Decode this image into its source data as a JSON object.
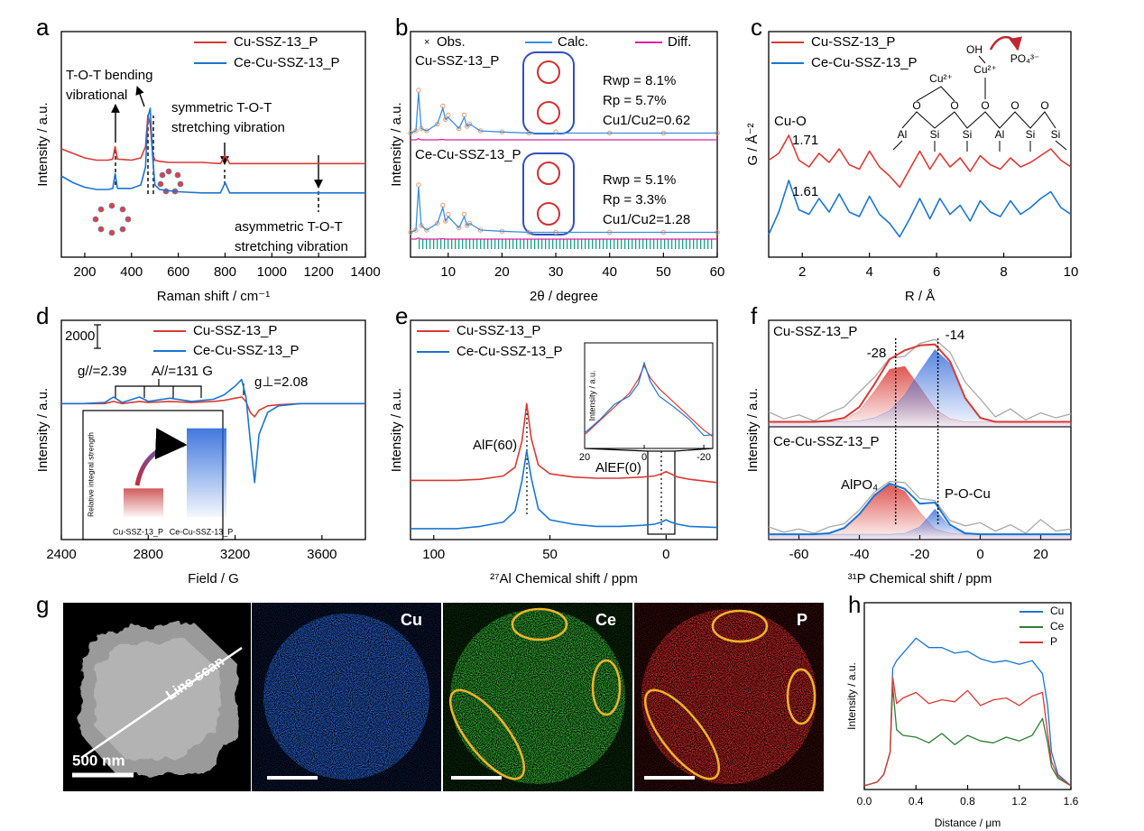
{
  "panel_labels": [
    "a",
    "b",
    "c",
    "d",
    "e",
    "f",
    "g",
    "h"
  ],
  "micrographs": {
    "maps": [
      "Cu",
      "Ce",
      "P"
    ],
    "scale_bar": "500 nm",
    "line_scan": "Line scan"
  },
  "chart_data": [
    {
      "type": "line",
      "xlabel": "Raman shift / cm⁻¹",
      "ylabel": "Intensity / a.u.",
      "xlim": [
        100,
        1400
      ],
      "xticks": [
        200,
        400,
        600,
        800,
        1000,
        1200,
        1400
      ],
      "ylim": [
        0,
        10
      ],
      "x": [
        100,
        150,
        200,
        250,
        300,
        320,
        330,
        340,
        400,
        440,
        460,
        470,
        480,
        490,
        500,
        520,
        560,
        600,
        700,
        780,
        800,
        820,
        900,
        1000,
        1100,
        1200,
        1300,
        1400
      ],
      "series": [
        {
          "name": "Cu-SSZ-13_P",
          "color": "#d93a35",
          "values": [
            4.8,
            4.6,
            4.4,
            4.3,
            4.3,
            4.35,
            4.9,
            4.35,
            4.3,
            4.4,
            4.9,
            6.3,
            5.9,
            4.6,
            4.3,
            4.25,
            4.2,
            4.2,
            4.2,
            4.15,
            4.5,
            4.15,
            4.15,
            4.15,
            4.15,
            4.15,
            4.15,
            4.15
          ]
        },
        {
          "name": "Ce-Cu-SSZ-13_P",
          "color": "#1a75d2",
          "values": [
            3.6,
            3.3,
            3.1,
            3.0,
            3.0,
            3.05,
            3.7,
            3.05,
            3.05,
            3.2,
            4.0,
            6.2,
            6.6,
            4.5,
            3.2,
            3.0,
            2.95,
            2.9,
            2.85,
            2.85,
            3.3,
            2.85,
            2.85,
            2.85,
            2.85,
            2.85,
            2.85,
            2.85
          ]
        }
      ],
      "annotations": [
        "T-O-T bending",
        "vibrational",
        "symmetric T-O-T",
        "stretching vibration",
        "asymmetric T-O-T",
        "stretching vibration"
      ]
    },
    {
      "type": "refinement",
      "xlabel": "2θ / degree",
      "ylabel": "Intensity / a.u.",
      "xlim": [
        3,
        60
      ],
      "xticks": [
        10,
        20,
        30,
        40,
        50,
        60
      ],
      "ylim": [
        0,
        10
      ],
      "legend": [
        {
          "name": "Obs.",
          "color": "#e8976a"
        },
        {
          "name": "Calc.",
          "color": "#3a8ee0"
        },
        {
          "name": "Diff.",
          "color": "#e020a0"
        }
      ],
      "x": [
        3,
        4,
        4.5,
        5,
        6,
        8,
        9,
        9.5,
        10,
        12,
        13,
        13.5,
        14,
        16,
        20,
        25,
        30,
        40,
        50,
        60
      ],
      "profiles": [
        {
          "label": "Cu-SSZ-13_P",
          "obs": [
            5.5,
            5.6,
            7.4,
            5.7,
            5.6,
            5.9,
            6.7,
            6.1,
            6.3,
            5.7,
            6.3,
            5.8,
            5.9,
            5.6,
            5.55,
            5.5,
            5.55,
            5.5,
            5.5,
            5.5
          ],
          "calc": [
            5.5,
            5.6,
            7.3,
            5.7,
            5.6,
            5.9,
            6.6,
            6.1,
            6.2,
            5.7,
            6.2,
            5.8,
            5.9,
            5.6,
            5.55,
            5.5,
            5.5,
            5.5,
            5.5,
            5.5
          ],
          "diff": [
            5.2,
            5.2,
            5.25,
            5.2,
            5.2,
            5.2,
            5.22,
            5.2,
            5.2,
            5.2,
            5.2,
            5.2,
            5.2,
            5.2,
            5.2,
            5.2,
            5.2,
            5.2,
            5.2,
            5.2
          ]
        },
        {
          "label": "Ce-Cu-SSZ-13_P",
          "obs": [
            1.1,
            1.2,
            3.2,
            1.4,
            1.2,
            1.5,
            2.3,
            1.6,
            1.9,
            1.3,
            1.9,
            1.4,
            1.5,
            1.2,
            1.15,
            1.1,
            1.1,
            1.1,
            1.1,
            1.1
          ],
          "calc": [
            1.1,
            1.2,
            3.1,
            1.4,
            1.2,
            1.5,
            2.2,
            1.6,
            1.8,
            1.3,
            1.8,
            1.4,
            1.5,
            1.2,
            1.15,
            1.1,
            1.1,
            1.1,
            1.1,
            1.1
          ],
          "diff": [
            0.8,
            0.8,
            0.85,
            0.8,
            0.8,
            0.8,
            0.82,
            0.8,
            0.8,
            0.8,
            0.8,
            0.8,
            0.8,
            0.8,
            0.8,
            0.8,
            0.8,
            0.8,
            0.8,
            0.8
          ]
        }
      ],
      "annotations": [
        "Rwp = 8.1%",
        "Rp = 5.7%",
        "Cu1/Cu2=0.62",
        "Rwp = 5.1%",
        "Rp = 3.3%",
        "Cu1/Cu2=1.28"
      ]
    },
    {
      "type": "line",
      "xlabel": "R / Å",
      "ylabel": "G / Å⁻²",
      "xlim": [
        1,
        10
      ],
      "xticks": [
        2,
        4,
        6,
        8,
        10
      ],
      "ylim": [
        0,
        10
      ],
      "x": [
        1.0,
        1.3,
        1.6,
        1.9,
        2.2,
        2.5,
        2.8,
        3.1,
        3.4,
        3.7,
        4.0,
        4.3,
        4.6,
        4.9,
        5.2,
        5.5,
        5.8,
        6.1,
        6.4,
        6.7,
        7.0,
        7.3,
        7.6,
        7.9,
        8.2,
        8.5,
        8.8,
        9.1,
        9.4,
        9.7,
        10.0
      ],
      "series": [
        {
          "name": "Cu-SSZ-13_P",
          "color": "#d93a35",
          "values": [
            4.3,
            4.6,
            5.4,
            4.3,
            4.0,
            4.6,
            4.2,
            4.8,
            4.1,
            3.9,
            4.7,
            4.0,
            3.6,
            3.1,
            3.9,
            4.7,
            3.9,
            4.6,
            4.0,
            4.4,
            3.8,
            4.5,
            4.1,
            3.9,
            4.4,
            4.0,
            4.2,
            4.5,
            4.8,
            4.3,
            4.0
          ]
        },
        {
          "name": "Ce-Cu-SSZ-13_P",
          "color": "#1a75d2",
          "values": [
            1.0,
            2.0,
            3.4,
            2.1,
            1.9,
            2.6,
            2.0,
            2.8,
            2.0,
            1.8,
            2.7,
            1.9,
            1.5,
            0.9,
            1.7,
            2.6,
            1.7,
            2.6,
            1.9,
            2.3,
            1.6,
            2.5,
            2.0,
            1.8,
            2.5,
            1.9,
            2.2,
            2.6,
            2.9,
            2.2,
            1.9
          ]
        }
      ],
      "annotations": [
        "Cu-O",
        "1.71",
        "1.61"
      ],
      "scheme": [
        "OH",
        "Cu²⁺",
        "PO₄³⁻",
        "Cu²⁺",
        "O",
        "O",
        "O",
        "O",
        "O",
        "Al",
        "Si",
        "Si",
        "Al",
        "Si",
        "Si"
      ]
    },
    {
      "type": "line",
      "xlabel": "Field / G",
      "ylabel": "Intensity / a.u.",
      "xlim": [
        2400,
        3800
      ],
      "xticks": [
        2400,
        2800,
        3200,
        3600
      ],
      "ylim": [
        0,
        10
      ],
      "x": [
        2400,
        2500,
        2600,
        2640,
        2680,
        2760,
        2800,
        2900,
        3000,
        3100,
        3150,
        3200,
        3230,
        3250,
        3270,
        3290,
        3310,
        3350,
        3400,
        3500,
        3600,
        3800
      ],
      "series": [
        {
          "name": "Cu-SSZ-13_P",
          "color": "#d93a35",
          "values": [
            6.2,
            6.2,
            6.2,
            6.3,
            6.2,
            6.3,
            6.25,
            6.3,
            6.25,
            6.3,
            6.35,
            6.45,
            6.5,
            6.3,
            5.8,
            5.6,
            5.9,
            6.1,
            6.15,
            6.2,
            6.2,
            6.2
          ]
        },
        {
          "name": "Ce-Cu-SSZ-13_P",
          "color": "#1a75d2",
          "values": [
            6.2,
            6.2,
            6.25,
            6.5,
            6.25,
            6.5,
            6.3,
            6.45,
            6.3,
            6.4,
            6.6,
            7.0,
            7.3,
            6.5,
            4.5,
            2.6,
            4.8,
            5.8,
            6.1,
            6.2,
            6.2,
            6.2
          ]
        }
      ],
      "annotations": [
        "2000",
        "g//=2.39",
        "A//=131 G",
        "g⊥=2.08"
      ],
      "inset": {
        "type": "bar",
        "ylabel": "Relative integral strength",
        "categories": [
          "Cu-SSZ-13_P",
          "Ce-Cu-SSZ-13_P"
        ],
        "values": [
          1,
          3.1
        ],
        "colors": [
          "#c94040",
          "#2060d8"
        ],
        "ylim": [
          0,
          3.5
        ]
      }
    },
    {
      "type": "line",
      "xlabel": "²⁷Al Chemical shift / ppm",
      "ylabel": "Intensity / a.u.",
      "xlim": [
        110,
        -22
      ],
      "xticks": [
        100,
        50,
        0
      ],
      "ylim": [
        0,
        10
      ],
      "x": [
        110,
        100,
        90,
        80,
        70,
        65,
        62,
        60,
        58,
        55,
        50,
        40,
        30,
        20,
        10,
        5,
        2,
        0,
        -2,
        -5,
        -10,
        -22
      ],
      "series": [
        {
          "name": "Cu-SSZ-13_P",
          "color": "#d93a35",
          "values": [
            2.7,
            2.7,
            2.7,
            2.75,
            2.9,
            3.3,
            4.5,
            6.2,
            4.6,
            3.4,
            3.0,
            2.85,
            2.8,
            2.8,
            2.85,
            2.9,
            3.0,
            3.1,
            3.0,
            2.85,
            2.75,
            2.6
          ]
        },
        {
          "name": "Ce-Cu-SSZ-13_P",
          "color": "#1a75d2",
          "values": [
            0.5,
            0.5,
            0.5,
            0.6,
            0.8,
            1.3,
            2.7,
            4.05,
            2.8,
            1.4,
            0.9,
            0.7,
            0.6,
            0.6,
            0.65,
            0.7,
            0.8,
            0.9,
            0.8,
            0.7,
            0.6,
            0.55
          ]
        }
      ],
      "annotations": [
        "AlF(60)",
        "AlEF(0)"
      ],
      "inset": {
        "type": "line",
        "ylabel": "Intensity / a.u.",
        "xlim": [
          20,
          -23
        ],
        "xticks": [
          20,
          0,
          -20
        ],
        "ylim": [
          0,
          10
        ],
        "x": [
          20,
          15,
          10,
          5,
          2,
          0,
          -2,
          -5,
          -10,
          -15,
          -20,
          -23
        ],
        "series": [
          {
            "color": "#d93a35",
            "values": [
              1,
              2.5,
              4,
              5.5,
              7,
              8.5,
              7.2,
              6,
              4.5,
              3,
              1.5,
              0.8
            ]
          },
          {
            "color": "#1a75d2",
            "values": [
              1.2,
              2.6,
              4.3,
              5.2,
              6.5,
              8.8,
              6.8,
              5.2,
              4.0,
              2.7,
              0.9,
              1.0
            ]
          }
        ]
      }
    },
    {
      "type": "fit",
      "xlabel": "³¹P Chemical shift / ppm",
      "ylabel": "Intensity / a.u.",
      "xlim": [
        -70,
        30
      ],
      "xticks": [
        -60,
        -40,
        -20,
        0,
        20
      ],
      "peak_marks": [
        -28,
        -14
      ],
      "raw_color": "#a8a8a8",
      "component_colors": [
        "#d93a35",
        "#3a6fd9"
      ],
      "x": [
        -70,
        -65,
        -60,
        -55,
        -50,
        -45,
        -40,
        -35,
        -30,
        -25,
        -20,
        -15,
        -10,
        -5,
        0,
        5,
        10,
        15,
        20,
        25,
        30
      ],
      "subpanels": [
        {
          "label": "Cu-SSZ-13_P",
          "fit_color": "#d93a35",
          "ylim": [
            0,
            10
          ],
          "annotations": [],
          "raw": [
            1.5,
            0.8,
            1.2,
            0.6,
            1.4,
            2.0,
            3.5,
            5.0,
            6.9,
            7.1,
            8.4,
            8.8,
            7.5,
            4.5,
            2.8,
            1.0,
            1.8,
            0.7,
            1.4,
            0.9,
            1.3
          ],
          "fit": [
            0.5,
            0.5,
            0.5,
            0.5,
            0.6,
            0.9,
            2.0,
            4.3,
            6.8,
            7.7,
            8.2,
            8.3,
            6.6,
            2.9,
            0.9,
            0.5,
            0.5,
            0.5,
            0.5,
            0.5,
            0.5
          ],
          "components": [
            [
              0.5,
              0.5,
              0.5,
              0.5,
              0.5,
              0.7,
              1.6,
              3.6,
              5.8,
              6.1,
              4.0,
              1.8,
              0.8,
              0.5,
              0.5,
              0.5,
              0.5,
              0.5,
              0.5,
              0.5,
              0.5
            ],
            [
              0.5,
              0.5,
              0.5,
              0.5,
              0.5,
              0.5,
              0.6,
              0.9,
              1.6,
              3.2,
              5.6,
              7.8,
              6.4,
              2.8,
              0.9,
              0.5,
              0.5,
              0.5,
              0.5,
              0.5,
              0.5
            ]
          ]
        },
        {
          "label": "Ce-Cu-SSZ-13_P",
          "fit_color": "#1a75d2",
          "ylim": [
            0,
            10
          ],
          "annotations": [
            "AlPO₄",
            "P-O-Cu"
          ],
          "raw": [
            1.2,
            0.7,
            1.0,
            0.6,
            1.2,
            1.5,
            2.8,
            4.5,
            5.5,
            5.4,
            3.9,
            3.7,
            1.8,
            1.3,
            1.6,
            0.8,
            1.4,
            0.6,
            1.9,
            0.8,
            1.0
          ],
          "fit": [
            0.5,
            0.5,
            0.5,
            0.5,
            0.6,
            1.1,
            2.4,
            4.2,
            5.3,
            4.8,
            3.4,
            3.5,
            1.4,
            0.6,
            0.5,
            0.5,
            0.5,
            0.5,
            0.5,
            0.5,
            0.5
          ],
          "components": [
            [
              0.5,
              0.5,
              0.5,
              0.5,
              0.6,
              1.1,
              2.4,
              4.2,
              5.2,
              4.6,
              2.6,
              1.0,
              0.6,
              0.5,
              0.5,
              0.5,
              0.5,
              0.5,
              0.5,
              0.5,
              0.5
            ],
            [
              0.5,
              0.5,
              0.5,
              0.5,
              0.5,
              0.5,
              0.5,
              0.5,
              0.5,
              0.6,
              1.2,
              2.9,
              1.2,
              0.5,
              0.5,
              0.5,
              0.5,
              0.5,
              0.5,
              0.5,
              0.5
            ]
          ]
        }
      ]
    },
    {
      "type": "line",
      "xlabel": "Distance / μm",
      "ylabel": "Intensity / a.u.",
      "xlim": [
        0,
        1.6
      ],
      "xticks": [
        {
          "value": 0,
          "label": "0.0"
        },
        0.4,
        0.8,
        1.2,
        1.6
      ],
      "ylim": [
        0,
        10
      ],
      "x": [
        0,
        0.1,
        0.15,
        0.2,
        0.22,
        0.25,
        0.3,
        0.4,
        0.5,
        0.6,
        0.7,
        0.8,
        0.9,
        1.0,
        1.1,
        1.2,
        1.3,
        1.38,
        1.42,
        1.45,
        1.5,
        1.6
      ],
      "series": [
        {
          "name": "Cu",
          "color": "#1a75d2",
          "values": [
            0.2,
            0.4,
            0.8,
            2.0,
            6.5,
            6.9,
            7.3,
            8.1,
            7.6,
            7.6,
            7.3,
            7.4,
            7.0,
            6.8,
            6.9,
            6.7,
            6.9,
            6.2,
            4.5,
            2.0,
            0.8,
            0.2
          ]
        },
        {
          "name": "Ce",
          "color": "#2e7d32",
          "values": [
            0.2,
            0.4,
            0.8,
            2.0,
            5.5,
            3.2,
            2.9,
            2.8,
            2.5,
            3.0,
            2.4,
            2.9,
            2.6,
            2.5,
            2.8,
            2.6,
            2.9,
            3.8,
            2.5,
            1.2,
            0.6,
            0.2
          ]
        },
        {
          "name": "P",
          "color": "#d93a35",
          "values": [
            0.2,
            0.4,
            0.8,
            2.0,
            6.0,
            4.6,
            4.9,
            5.2,
            4.6,
            4.8,
            4.7,
            5.3,
            4.5,
            4.8,
            4.9,
            4.5,
            5.0,
            5.2,
            3.0,
            1.5,
            0.7,
            0.2
          ]
        }
      ]
    }
  ]
}
